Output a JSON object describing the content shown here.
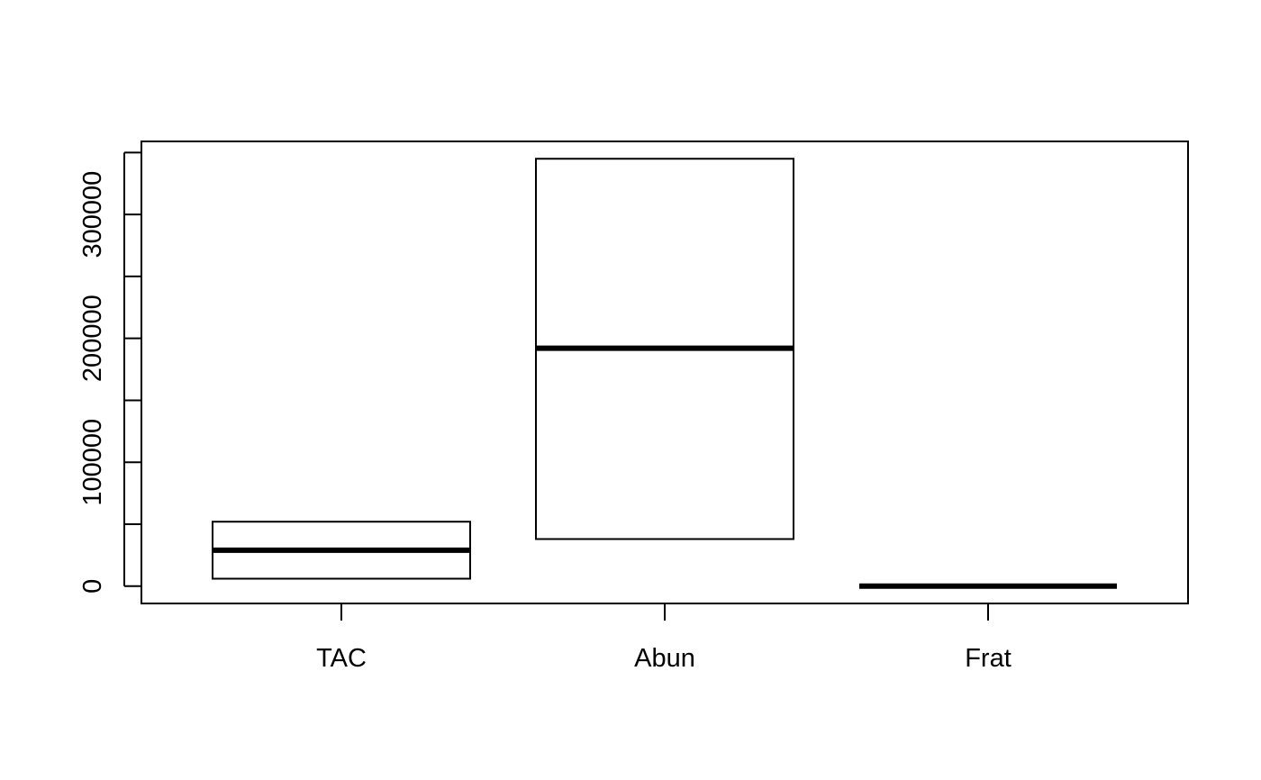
{
  "chart_data": {
    "type": "boxplot",
    "title": "",
    "xlabel": "",
    "ylabel": "",
    "categories": [
      "TAC",
      "Abun",
      "Frat"
    ],
    "boxes": [
      {
        "name": "TAC",
        "q1": 6000,
        "median": 29000,
        "q3": 52000
      },
      {
        "name": "Abun",
        "q1": 38000,
        "median": 192000,
        "q3": 345000
      },
      {
        "name": "Frat",
        "q1": 0,
        "median": 0,
        "q3": 0
      }
    ],
    "y_ticks": [
      0,
      100000,
      200000,
      300000
    ],
    "y_tick_labels": [
      "0",
      "100000",
      "200000",
      "300000"
    ],
    "ylim": [
      -14000,
      359000
    ],
    "grid": false,
    "legend": "none",
    "colors": {
      "box_stroke": "#000000",
      "box_fill": "#ffffff",
      "median": "#000000"
    }
  }
}
